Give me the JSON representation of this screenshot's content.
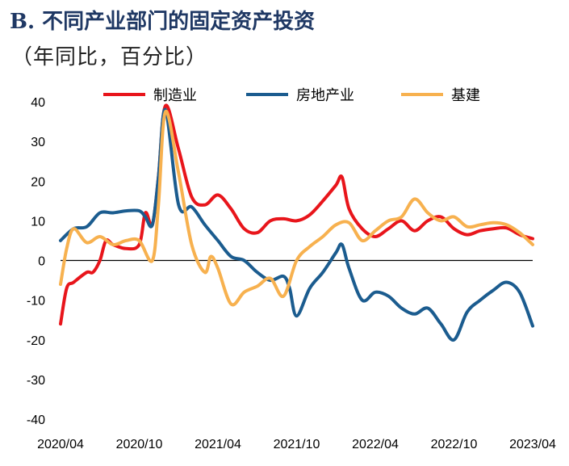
{
  "header": {
    "title_prefix": "B.",
    "title": "不同产业部门的固定资产投资",
    "subtitle": "（年同比，百分比）"
  },
  "chart_data": {
    "type": "line",
    "title": "B. 不同产业部门的固定资产投资",
    "subtitle": "（年同比，百分比）",
    "xlabel": "",
    "ylabel": "",
    "ylim": [
      -40,
      40
    ],
    "yticks": [
      40,
      30,
      20,
      10,
      0,
      -10,
      -20,
      -30,
      -40
    ],
    "xlim": [
      "2020-04",
      "2023-04"
    ],
    "xticks": [
      "2020/04",
      "2020/10",
      "2021/04",
      "2021/10",
      "2022/04",
      "2022/10",
      "2023/04"
    ],
    "legend_position": "top",
    "grid": false,
    "zero_line": true,
    "series": [
      {
        "name": "制造业",
        "color": "#e8151b",
        "points": [
          [
            "2020-04",
            -16
          ],
          [
            "2020-04-15",
            -7
          ],
          [
            "2020-05",
            -5.5
          ],
          [
            "2020-06",
            -3
          ],
          [
            "2020-06-15",
            -3
          ],
          [
            "2020-07",
            0
          ],
          [
            "2020-07-15",
            5
          ],
          [
            "2020-08",
            4
          ],
          [
            "2020-09",
            3
          ],
          [
            "2020-10",
            4
          ],
          [
            "2020-10-15",
            12
          ],
          [
            "2020-11",
            9
          ],
          [
            "2020-11-15",
            21
          ],
          [
            "2020-12",
            39
          ],
          [
            "2021-01",
            28
          ],
          [
            "2021-02",
            16
          ],
          [
            "2021-03",
            14
          ],
          [
            "2021-04",
            16.5
          ],
          [
            "2021-05",
            13
          ],
          [
            "2021-06",
            8
          ],
          [
            "2021-07",
            7
          ],
          [
            "2021-08",
            10
          ],
          [
            "2021-09",
            10.5
          ],
          [
            "2021-10",
            10
          ],
          [
            "2021-11",
            11.5
          ],
          [
            "2021-12",
            15
          ],
          [
            "2022-01",
            19
          ],
          [
            "2022-01-15",
            21
          ],
          [
            "2022-02",
            13
          ],
          [
            "2022-03",
            8
          ],
          [
            "2022-04",
            6
          ],
          [
            "2022-05",
            8
          ],
          [
            "2022-06",
            10
          ],
          [
            "2022-07",
            7.5
          ],
          [
            "2022-08",
            10
          ],
          [
            "2022-09",
            11
          ],
          [
            "2022-10",
            8
          ],
          [
            "2022-11",
            6.5
          ],
          [
            "2022-12",
            7.5
          ],
          [
            "2023-01",
            8
          ],
          [
            "2023-02",
            8.2
          ],
          [
            "2023-03",
            6.5
          ],
          [
            "2023-04",
            5.5
          ]
        ]
      },
      {
        "name": "房地产业",
        "color": "#1b5c8f",
        "points": [
          [
            "2020-04",
            5
          ],
          [
            "2020-05",
            8
          ],
          [
            "2020-06",
            8.5
          ],
          [
            "2020-07",
            12
          ],
          [
            "2020-08",
            12
          ],
          [
            "2020-09",
            12.5
          ],
          [
            "2020-10",
            12.5
          ],
          [
            "2020-10-15",
            11
          ],
          [
            "2020-11",
            9
          ],
          [
            "2020-11-15",
            21
          ],
          [
            "2020-12",
            38
          ],
          [
            "2021-01",
            14
          ],
          [
            "2021-02",
            13.5
          ],
          [
            "2021-03",
            9
          ],
          [
            "2021-04",
            5
          ],
          [
            "2021-05",
            1
          ],
          [
            "2021-06",
            0
          ],
          [
            "2021-07",
            -3
          ],
          [
            "2021-08",
            -5
          ],
          [
            "2021-09",
            -4
          ],
          [
            "2021-09-15",
            -7
          ],
          [
            "2021-10",
            -14
          ],
          [
            "2021-11",
            -7
          ],
          [
            "2021-12",
            -3
          ],
          [
            "2022-01",
            2
          ],
          [
            "2022-01-15",
            4
          ],
          [
            "2022-02",
            -2
          ],
          [
            "2022-03",
            -10
          ],
          [
            "2022-04",
            -8
          ],
          [
            "2022-05",
            -9
          ],
          [
            "2022-06",
            -12
          ],
          [
            "2022-07",
            -13.5
          ],
          [
            "2022-08",
            -12
          ],
          [
            "2022-09",
            -16
          ],
          [
            "2022-10",
            -20
          ],
          [
            "2022-11",
            -13
          ],
          [
            "2022-12",
            -10
          ],
          [
            "2023-01",
            -7.5
          ],
          [
            "2023-02",
            -5.5
          ],
          [
            "2023-03",
            -8
          ],
          [
            "2023-04",
            -16.5
          ]
        ]
      },
      {
        "name": "基建",
        "color": "#f7b14f",
        "points": [
          [
            "2020-04",
            -6
          ],
          [
            "2020-04-15",
            3
          ],
          [
            "2020-05",
            8
          ],
          [
            "2020-06",
            4.5
          ],
          [
            "2020-07",
            6
          ],
          [
            "2020-08",
            4
          ],
          [
            "2020-09",
            5
          ],
          [
            "2020-10",
            5
          ],
          [
            "2020-11",
            0
          ],
          [
            "2020-11-15",
            14
          ],
          [
            "2020-12",
            37.5
          ],
          [
            "2021-01",
            22
          ],
          [
            "2021-02",
            4
          ],
          [
            "2021-03",
            -3
          ],
          [
            "2021-03-15",
            1
          ],
          [
            "2021-04",
            -2
          ],
          [
            "2021-05",
            -11
          ],
          [
            "2021-06",
            -8
          ],
          [
            "2021-07",
            -6.5
          ],
          [
            "2021-08",
            -4.5
          ],
          [
            "2021-09",
            -9
          ],
          [
            "2021-10",
            0
          ],
          [
            "2021-11",
            3.5
          ],
          [
            "2021-12",
            6
          ],
          [
            "2022-01",
            9
          ],
          [
            "2022-02",
            9.5
          ],
          [
            "2022-03",
            5
          ],
          [
            "2022-04",
            7.5
          ],
          [
            "2022-05",
            10
          ],
          [
            "2022-06",
            11
          ],
          [
            "2022-07",
            15.5
          ],
          [
            "2022-08",
            12
          ],
          [
            "2022-09",
            10
          ],
          [
            "2022-10",
            11
          ],
          [
            "2022-11",
            8.5
          ],
          [
            "2022-12",
            9
          ],
          [
            "2023-01",
            9.5
          ],
          [
            "2023-02",
            9
          ],
          [
            "2023-03",
            7
          ],
          [
            "2023-04",
            4
          ]
        ]
      }
    ]
  }
}
